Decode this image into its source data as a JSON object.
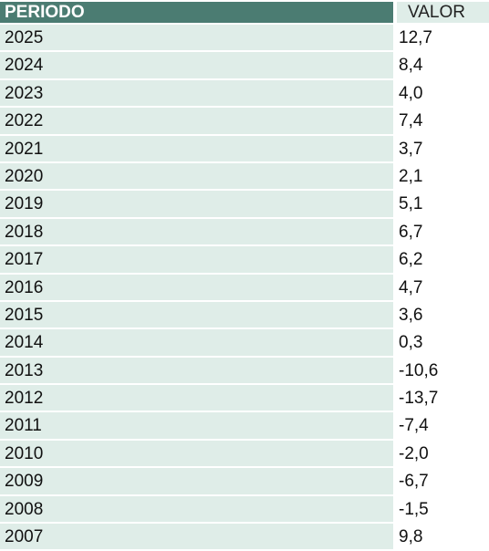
{
  "table": {
    "headers": {
      "periodo": "PERIODO",
      "valor": "VALOR"
    },
    "rows": [
      {
        "periodo": "2025",
        "valor": "12,7"
      },
      {
        "periodo": "2024",
        "valor": "8,4"
      },
      {
        "periodo": "2023",
        "valor": "4,0"
      },
      {
        "periodo": "2022",
        "valor": "7,4"
      },
      {
        "periodo": "2021",
        "valor": "3,7"
      },
      {
        "periodo": "2020",
        "valor": "2,1"
      },
      {
        "periodo": "2019",
        "valor": "5,1"
      },
      {
        "periodo": "2018",
        "valor": "6,7"
      },
      {
        "periodo": "2017",
        "valor": "6,2"
      },
      {
        "periodo": "2016",
        "valor": "4,7"
      },
      {
        "periodo": "2015",
        "valor": "3,6"
      },
      {
        "periodo": "2014",
        "valor": "0,3"
      },
      {
        "periodo": "2013",
        "valor": "-10,6"
      },
      {
        "periodo": "2012",
        "valor": "-13,7"
      },
      {
        "periodo": "2011",
        "valor": "-7,4"
      },
      {
        "periodo": "2010",
        "valor": "-2,0"
      },
      {
        "periodo": "2009",
        "valor": "-6,7"
      },
      {
        "periodo": "2008",
        "valor": "-1,5"
      },
      {
        "periodo": "2007",
        "valor": "9,8"
      }
    ]
  },
  "colors": {
    "header_bg": "#4b7c72",
    "row_bg": "#dfede8"
  }
}
